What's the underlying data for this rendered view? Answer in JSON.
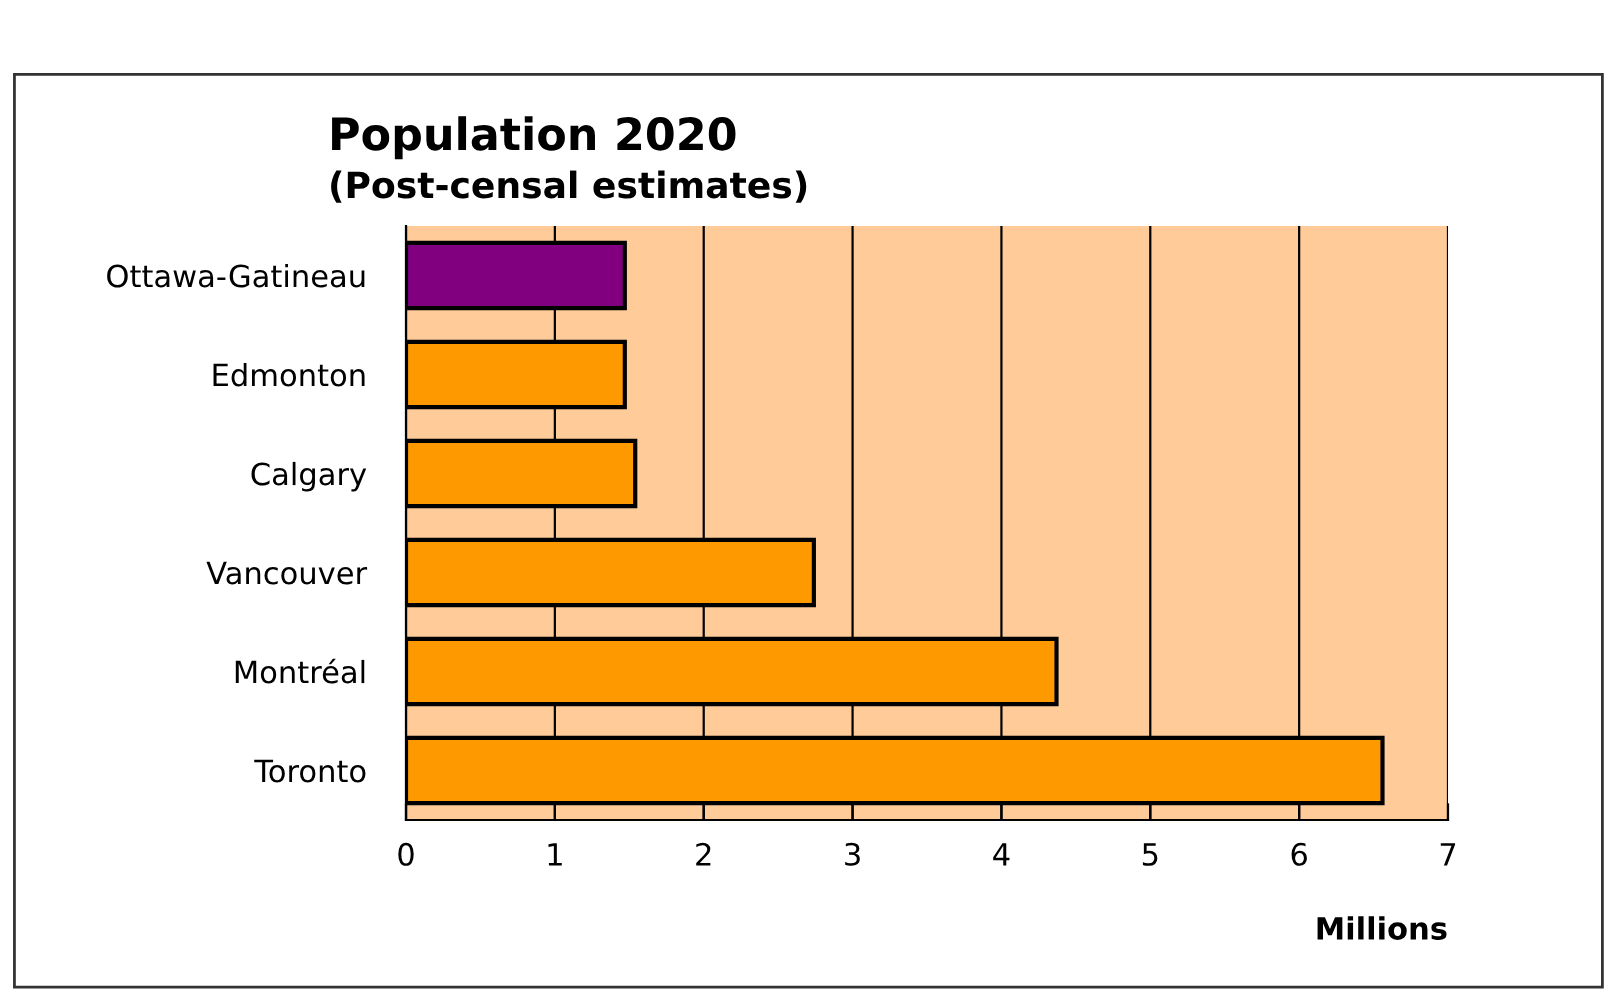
{
  "chart_data": {
    "type": "bar",
    "orientation": "horizontal",
    "title": "Population 2020",
    "subtitle": "(Post-censal estimates)",
    "xlabel": "Millions",
    "categories": [
      "Ottawa-Gatineau",
      "Edmonton",
      "Calgary",
      "Vancouver",
      "Montréal",
      "Toronto"
    ],
    "values": [
      1.47,
      1.47,
      1.54,
      2.74,
      4.37,
      6.56
    ],
    "colors": [
      "#800080",
      "#ff9900",
      "#ff9900",
      "#ff9900",
      "#ff9900",
      "#ff9900"
    ],
    "xlim": [
      0,
      7
    ],
    "xticks": [
      0,
      1,
      2,
      3,
      4,
      5,
      6,
      7
    ],
    "grid": "x"
  }
}
